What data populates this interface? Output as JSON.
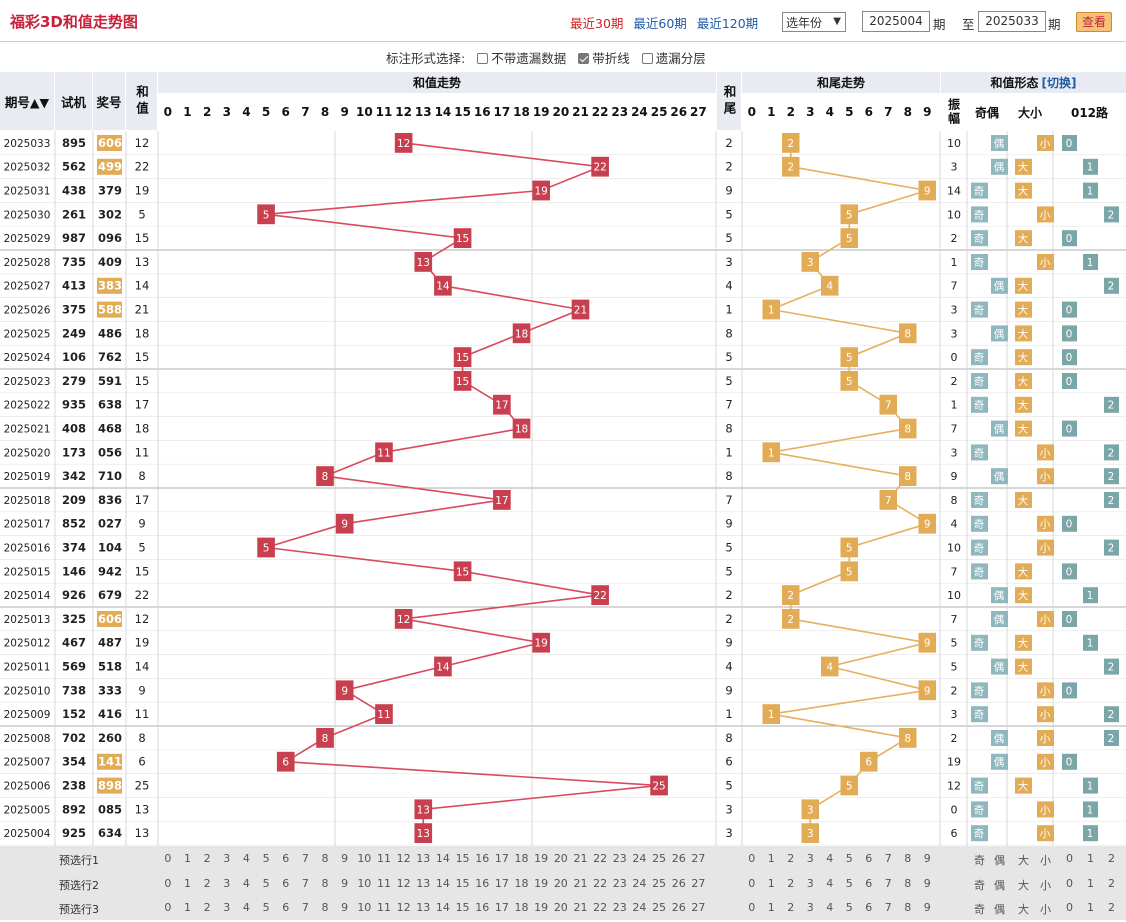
{
  "title": "福彩3D和值走势图",
  "periods": [
    "最近30期",
    "最近60期",
    "最近120期"
  ],
  "active_period": "最近30期",
  "year_select": "选年份",
  "from": "2025004",
  "to": "2025033",
  "qi_label": "期",
  "zhi_label": "至",
  "view_label": "查看",
  "options_label": "标注形式选择:",
  "options": [
    {
      "label": "不带遗漏数据",
      "checked": false
    },
    {
      "label": "带折线",
      "checked": true
    },
    {
      "label": "遗漏分层",
      "checked": false
    }
  ],
  "headers": {
    "issue": "期号",
    "trial": "试机",
    "draw": "奖号",
    "sum": "和值",
    "sum_trend": "和值走势",
    "tail": "和尾",
    "tail_trend": "和尾走势",
    "form": "和值形态",
    "switch": "[切换]",
    "amp": "振幅",
    "parity": "奇偶",
    "size": "大小",
    "road": "012路"
  },
  "colors": {
    "sum_line": "#d94a5e",
    "tail_line": "#e6b060",
    "sum_mark": "#c8404f",
    "tail_mark": "#e2ab55",
    "odd_even": "#8fb7bd",
    "big_small": "#e2ab55",
    "road": "#7aa6a8"
  },
  "rows": [
    {
      "issue": "2025033",
      "trial": "895",
      "draw": "606",
      "sum": 12,
      "tail": 2,
      "amp": 10,
      "hl": true,
      "road_val": 0
    },
    {
      "issue": "2025032",
      "trial": "562",
      "draw": "499",
      "sum": 22,
      "tail": 2,
      "amp": 3,
      "hl": true,
      "road_val": 1
    },
    {
      "issue": "2025031",
      "trial": "438",
      "draw": "379",
      "sum": 19,
      "tail": 9,
      "amp": 14,
      "hl": false,
      "road_val": 1
    },
    {
      "issue": "2025030",
      "trial": "261",
      "draw": "302",
      "sum": 5,
      "tail": 5,
      "amp": 10,
      "hl": false,
      "road_val": 2
    },
    {
      "issue": "2025029",
      "trial": "987",
      "draw": "096",
      "sum": 15,
      "tail": 5,
      "amp": 2,
      "hl": false,
      "road_val": 0
    },
    {
      "issue": "2025028",
      "trial": "735",
      "draw": "409",
      "sum": 13,
      "tail": 3,
      "amp": 1,
      "hl": false,
      "road_val": 1
    },
    {
      "issue": "2025027",
      "trial": "413",
      "draw": "383",
      "sum": 14,
      "tail": 4,
      "amp": 7,
      "hl": true,
      "road_val": 2
    },
    {
      "issue": "2025026",
      "trial": "375",
      "draw": "588",
      "sum": 21,
      "tail": 1,
      "amp": 3,
      "hl": true,
      "road_val": 0
    },
    {
      "issue": "2025025",
      "trial": "249",
      "draw": "486",
      "sum": 18,
      "tail": 8,
      "amp": 3,
      "hl": false,
      "road_val": 0
    },
    {
      "issue": "2025024",
      "trial": "106",
      "draw": "762",
      "sum": 15,
      "tail": 5,
      "amp": 0,
      "hl": false,
      "road_val": 0
    },
    {
      "issue": "2025023",
      "trial": "279",
      "draw": "591",
      "sum": 15,
      "tail": 5,
      "amp": 2,
      "hl": false,
      "road_val": 0
    },
    {
      "issue": "2025022",
      "trial": "935",
      "draw": "638",
      "sum": 17,
      "tail": 7,
      "amp": 1,
      "hl": false,
      "road_val": 2
    },
    {
      "issue": "2025021",
      "trial": "408",
      "draw": "468",
      "sum": 18,
      "tail": 8,
      "amp": 7,
      "hl": false,
      "road_val": 0
    },
    {
      "issue": "2025020",
      "trial": "173",
      "draw": "056",
      "sum": 11,
      "tail": 1,
      "amp": 3,
      "hl": false,
      "road_val": 2
    },
    {
      "issue": "2025019",
      "trial": "342",
      "draw": "710",
      "sum": 8,
      "tail": 8,
      "amp": 9,
      "hl": false,
      "road_val": 2
    },
    {
      "issue": "2025018",
      "trial": "209",
      "draw": "836",
      "sum": 17,
      "tail": 7,
      "amp": 8,
      "hl": false,
      "road_val": 2
    },
    {
      "issue": "2025017",
      "trial": "852",
      "draw": "027",
      "sum": 9,
      "tail": 9,
      "amp": 4,
      "hl": false,
      "road_val": 0
    },
    {
      "issue": "2025016",
      "trial": "374",
      "draw": "104",
      "sum": 5,
      "tail": 5,
      "amp": 10,
      "hl": false,
      "road_val": 2
    },
    {
      "issue": "2025015",
      "trial": "146",
      "draw": "942",
      "sum": 15,
      "tail": 5,
      "amp": 7,
      "hl": false,
      "road_val": 0
    },
    {
      "issue": "2025014",
      "trial": "926",
      "draw": "679",
      "sum": 22,
      "tail": 2,
      "amp": 10,
      "hl": false,
      "road_val": 1
    },
    {
      "issue": "2025013",
      "trial": "325",
      "draw": "606",
      "sum": 12,
      "tail": 2,
      "amp": 7,
      "hl": true,
      "road_val": 0
    },
    {
      "issue": "2025012",
      "trial": "467",
      "draw": "487",
      "sum": 19,
      "tail": 9,
      "amp": 5,
      "hl": false,
      "road_val": 1
    },
    {
      "issue": "2025011",
      "trial": "569",
      "draw": "518",
      "sum": 14,
      "tail": 4,
      "amp": 5,
      "hl": false,
      "road_val": 2
    },
    {
      "issue": "2025010",
      "trial": "738",
      "draw": "333",
      "sum": 9,
      "tail": 9,
      "amp": 2,
      "hl": false,
      "road_val": 0
    },
    {
      "issue": "2025009",
      "trial": "152",
      "draw": "416",
      "sum": 11,
      "tail": 1,
      "amp": 3,
      "hl": false,
      "road_val": 2
    },
    {
      "issue": "2025008",
      "trial": "702",
      "draw": "260",
      "sum": 8,
      "tail": 8,
      "amp": 2,
      "hl": false,
      "road_val": 2
    },
    {
      "issue": "2025007",
      "trial": "354",
      "draw": "141",
      "sum": 6,
      "tail": 6,
      "amp": 19,
      "hl": true,
      "road_val": 0
    },
    {
      "issue": "2025006",
      "trial": "238",
      "draw": "898",
      "sum": 25,
      "tail": 5,
      "amp": 12,
      "hl": true,
      "road_val": 1
    },
    {
      "issue": "2025005",
      "trial": "892",
      "draw": "085",
      "sum": 13,
      "tail": 3,
      "amp": 0,
      "hl": false,
      "road_val": 1
    },
    {
      "issue": "2025004",
      "trial": "925",
      "draw": "634",
      "sum": 13,
      "tail": 3,
      "amp": 6,
      "hl": false,
      "road_val": 1
    }
  ],
  "preselect": [
    "预选行1",
    "预选行2",
    "预选行3"
  ],
  "parity_labels": [
    "奇",
    "偶"
  ],
  "size_labels": [
    "大",
    "小"
  ],
  "road_labels": [
    "0",
    "1",
    "2"
  ]
}
